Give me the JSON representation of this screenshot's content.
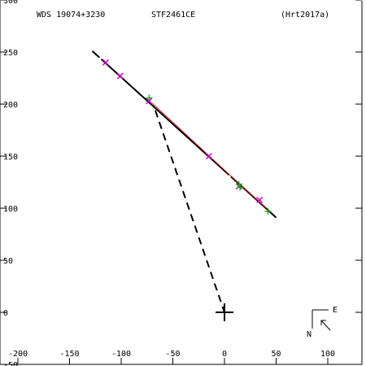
{
  "header": {
    "left": "WDS 19074+3230",
    "center": "STF2461CE",
    "right": "(Hrt2017a)"
  },
  "compass": {
    "east_label": "E",
    "north_label": "N"
  },
  "chart_data": {
    "type": "scatter",
    "title": "STF2461CE",
    "xlabel": "",
    "ylabel": "",
    "xlim": [
      -200,
      130
    ],
    "ylim": [
      -50,
      300
    ],
    "x_ticks": [
      -200,
      -150,
      -100,
      -50,
      0,
      50,
      100
    ],
    "y_ticks": [
      -50,
      0,
      50,
      100,
      150,
      200,
      250,
      300
    ],
    "primary": {
      "x": 0,
      "y": 0,
      "marker": "plus"
    },
    "orbit_line": {
      "from": [
        -128,
        251
      ],
      "to": [
        50,
        91
      ],
      "style": "solid",
      "color": "#000000"
    },
    "orbit_line_red": {
      "from": [
        -70,
        201
      ],
      "to": [
        43,
        97
      ],
      "color": "#cc0000"
    },
    "projection_line": {
      "from": [
        -67,
        194
      ],
      "to": [
        0,
        0
      ],
      "style": "dashed"
    },
    "observations_magenta": {
      "marker": "x",
      "color": "#cc00cc",
      "points": [
        [
          -115,
          240
        ],
        [
          -101,
          227
        ],
        [
          -73,
          203
        ],
        [
          -15,
          150
        ],
        [
          14,
          121
        ],
        [
          34,
          108
        ]
      ]
    },
    "observations_green": {
      "marker": "plus",
      "color": "#00aa00",
      "points": [
        [
          -73,
          206
        ],
        [
          14,
          123
        ],
        [
          15,
          120
        ],
        [
          42,
          97
        ]
      ]
    },
    "grid": false
  }
}
